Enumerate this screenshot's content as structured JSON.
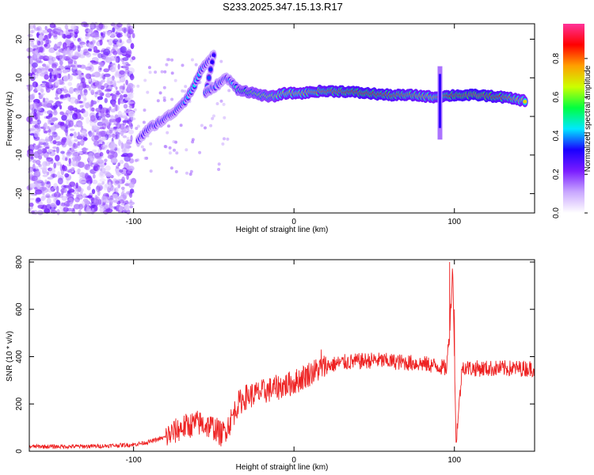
{
  "figure_title": "S233.2025.347.15.13.R17",
  "chart_data": [
    {
      "type": "heatmap",
      "title": "",
      "xlabel": "Height of straight line (km)",
      "ylabel": "Frequency (Hz)",
      "xlim": [
        -165,
        150
      ],
      "ylim": [
        -25,
        24
      ],
      "x_ticks": [
        -100,
        0,
        100
      ],
      "x_tick_labels": [
        "-100",
        "0",
        "100"
      ],
      "y_ticks": [
        -20,
        -10,
        0,
        10,
        20
      ],
      "y_tick_labels": [
        "-20",
        "-10",
        "0",
        "10",
        "20"
      ],
      "colorbar": {
        "label": "Normalized spectral amplitude",
        "range": [
          0,
          0.98
        ],
        "ticks": [
          0.0,
          0.2,
          0.4,
          0.6,
          0.8
        ],
        "tick_labels": [
          "0.0",
          "0.2",
          "0.4",
          "0.6",
          "0.8"
        ],
        "colors": [
          "#ffffff",
          "#c9a7ff",
          "#7a1cff",
          "#1a00ff",
          "#00e8ff",
          "#00ff40",
          "#ccff00",
          "#ffa000",
          "#ff0000",
          "#ff3399"
        ]
      },
      "noise_region": {
        "x_range": [
          -165,
          -100
        ],
        "freq_range": [
          -25,
          24
        ],
        "amplitude": [
          0.05,
          0.25
        ]
      },
      "ridge": [
        {
          "x": -97,
          "freq": -6,
          "amp": 0.3
        },
        {
          "x": -90,
          "freq": -3,
          "amp": 0.35
        },
        {
          "x": -82,
          "freq": -1,
          "amp": 0.35
        },
        {
          "x": -75,
          "freq": 1,
          "amp": 0.35
        },
        {
          "x": -68,
          "freq": 4,
          "amp": 0.4
        },
        {
          "x": -62,
          "freq": 8,
          "amp": 0.45
        },
        {
          "x": -58,
          "freq": 12,
          "amp": 0.4
        },
        {
          "x": -50,
          "freq": 16,
          "amp": 0.3
        },
        {
          "x": -55,
          "freq": 6,
          "amp": 0.4
        },
        {
          "x": -42,
          "freq": 10,
          "amp": 0.35
        },
        {
          "x": -35,
          "freq": 7,
          "amp": 0.5
        },
        {
          "x": -25,
          "freq": 6,
          "amp": 0.6
        },
        {
          "x": -15,
          "freq": 5,
          "amp": 0.65
        },
        {
          "x": -5,
          "freq": 6,
          "amp": 0.75
        },
        {
          "x": 5,
          "freq": 6,
          "amp": 0.75
        },
        {
          "x": 15,
          "freq": 6.5,
          "amp": 0.8
        },
        {
          "x": 30,
          "freq": 6.5,
          "amp": 0.85
        },
        {
          "x": 45,
          "freq": 6,
          "amp": 0.9
        },
        {
          "x": 60,
          "freq": 5.5,
          "amp": 0.85
        },
        {
          "x": 75,
          "freq": 5.5,
          "amp": 0.8
        },
        {
          "x": 88,
          "freq": 5,
          "amp": 0.75
        },
        {
          "x": 100,
          "freq": 5.5,
          "amp": 0.9
        },
        {
          "x": 115,
          "freq": 5.5,
          "amp": 0.95
        },
        {
          "x": 130,
          "freq": 5,
          "amp": 0.85
        },
        {
          "x": 145,
          "freq": 4,
          "amp": 0.7
        }
      ],
      "spike": {
        "x": 91,
        "freq_range": [
          -6,
          13
        ]
      }
    },
    {
      "type": "line",
      "title": "",
      "xlabel": "Height of straight line (km)",
      "ylabel": "SNR (10 * v/v)",
      "xlim": [
        -165,
        150
      ],
      "ylim": [
        0,
        810
      ],
      "x_ticks": [
        -100,
        0,
        100
      ],
      "x_tick_labels": [
        "-100",
        "0",
        "100"
      ],
      "y_ticks": [
        0,
        200,
        400,
        600,
        800
      ],
      "y_tick_labels": [
        "0",
        "200",
        "400",
        "600",
        "800"
      ],
      "line_color": "#ee2222",
      "series": [
        {
          "name": "SNR",
          "x": [
            -165,
            -140,
            -120,
            -100,
            -90,
            -80,
            -70,
            -60,
            -50,
            -45,
            -40,
            -35,
            -30,
            -25,
            -20,
            -10,
            0,
            10,
            20,
            30,
            40,
            50,
            60,
            70,
            80,
            90,
            95,
            97,
            99,
            101,
            105,
            110,
            120,
            130,
            140,
            150
          ],
          "y": [
            20,
            20,
            22,
            28,
            40,
            60,
            100,
            120,
            100,
            70,
            120,
            200,
            230,
            240,
            250,
            270,
            290,
            330,
            360,
            375,
            380,
            385,
            380,
            375,
            370,
            360,
            350,
            500,
            780,
            40,
            360,
            350,
            350,
            350,
            350,
            350
          ],
          "noise": 25
        }
      ],
      "peaks": [
        {
          "x": 97,
          "y": 800
        },
        {
          "x": 100,
          "y": 600
        },
        {
          "x": 17,
          "y": 430
        }
      ]
    }
  ]
}
